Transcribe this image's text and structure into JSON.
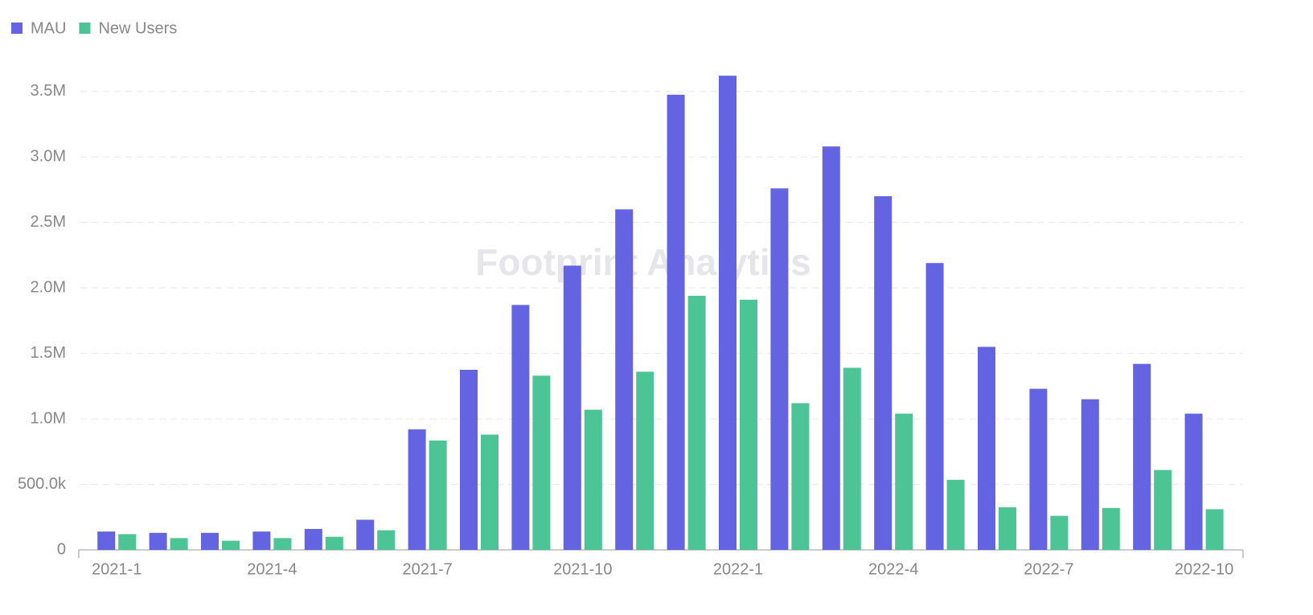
{
  "chart_data": {
    "type": "bar",
    "watermark": "Footprint Analytics",
    "categories": [
      "2021-1",
      null,
      null,
      "2021-4",
      null,
      null,
      "2021-7",
      null,
      null,
      "2021-10",
      null,
      null,
      "2022-1",
      null,
      null,
      "2022-4",
      null,
      null,
      "2022-7",
      null,
      null,
      "2022-10"
    ],
    "series": [
      {
        "name": "MAU",
        "color": "#6464e2",
        "values": [
          140000,
          130000,
          130000,
          140000,
          160000,
          230000,
          920000,
          1375000,
          1870000,
          2170000,
          2600000,
          3475000,
          3620000,
          2760000,
          3080000,
          2700000,
          2190000,
          1550000,
          1230000,
          1150000,
          1420000,
          1040000
        ]
      },
      {
        "name": "New Users",
        "color": "#4cc495",
        "values": [
          120000,
          90000,
          70000,
          90000,
          100000,
          150000,
          835000,
          880000,
          1330000,
          1070000,
          1360000,
          1940000,
          1910000,
          1120000,
          1390000,
          1040000,
          535000,
          325000,
          260000,
          320000,
          610000,
          310000
        ]
      }
    ],
    "ylim": [
      0,
      3750000
    ],
    "yticks": [
      0,
      {
        "value": 500000,
        "label": "500.0k"
      },
      {
        "value": 1000000,
        "label": "1.0M"
      },
      {
        "value": 1500000,
        "label": "1.5M"
      },
      {
        "value": 2000000,
        "label": "2.0M"
      },
      {
        "value": 2500000,
        "label": "2.5M"
      },
      {
        "value": 3000000,
        "label": "3.0M"
      },
      {
        "value": 3500000,
        "label": "3.5M"
      }
    ],
    "grid": true,
    "legend": "top-left"
  }
}
